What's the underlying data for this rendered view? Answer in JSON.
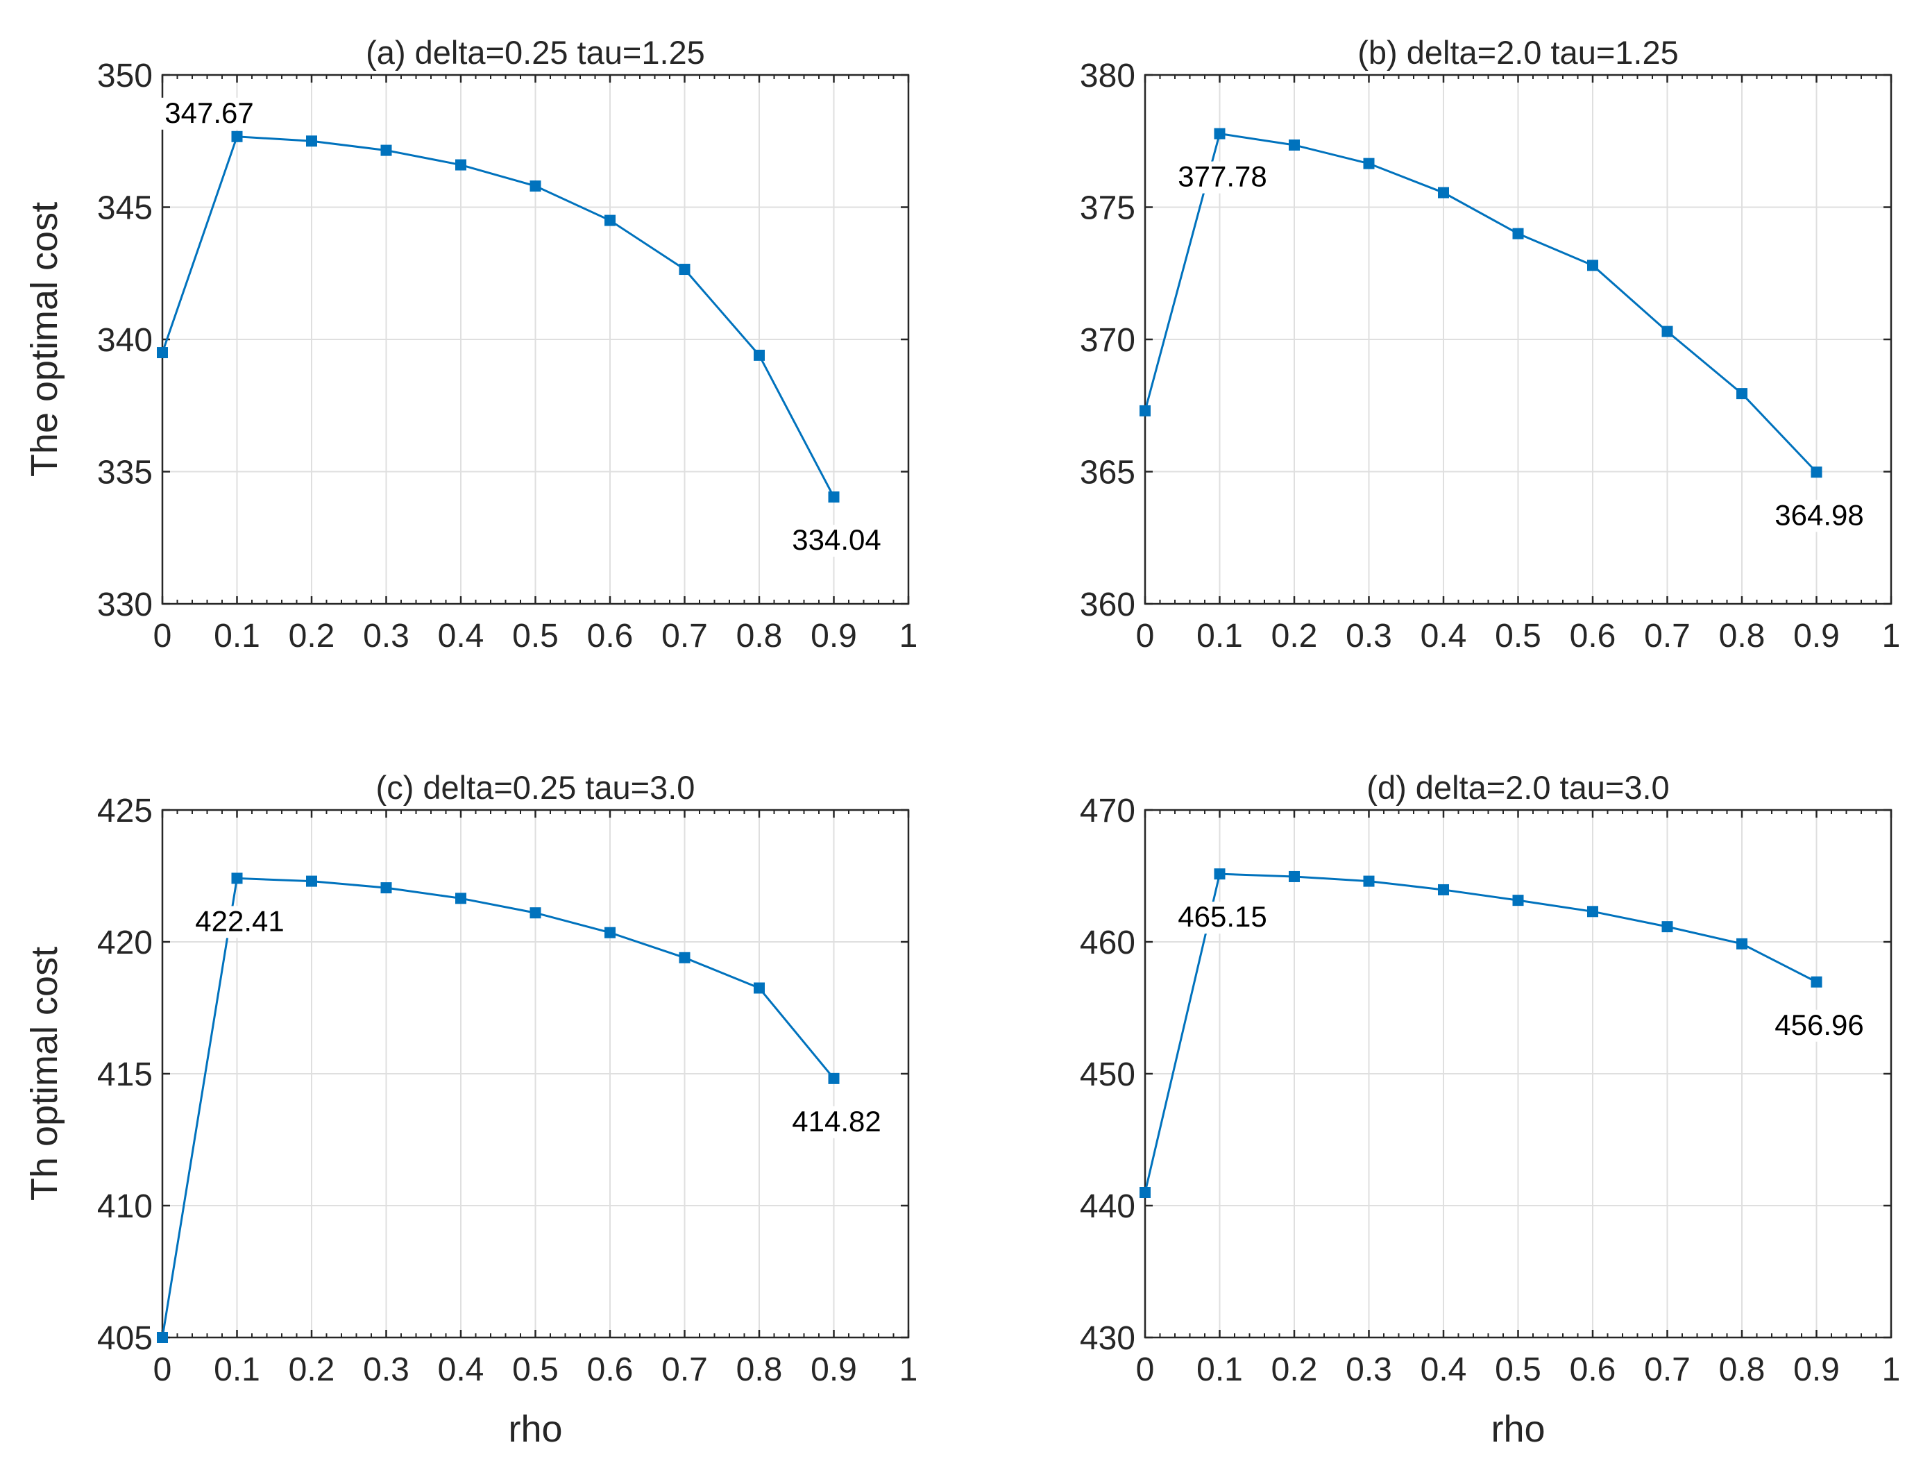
{
  "chart_data": [
    {
      "type": "line",
      "title": "(a) delta=0.25 tau=1.25",
      "xlabel": "",
      "ylabel": "The optimal cost",
      "x": [
        0,
        0.1,
        0.2,
        0.3,
        0.4,
        0.5,
        0.6,
        0.7,
        0.8,
        0.9
      ],
      "series": [
        {
          "name": "optimal cost",
          "values": [
            339.5,
            347.67,
            347.5,
            347.15,
            346.6,
            345.8,
            344.5,
            342.65,
            339.4,
            334.04
          ]
        }
      ],
      "xlim": [
        0,
        1
      ],
      "ylim": [
        330,
        350
      ],
      "xticks": [
        "0",
        "0.1",
        "0.2",
        "0.3",
        "0.4",
        "0.5",
        "0.6",
        "0.7",
        "0.8",
        "0.9",
        "1"
      ],
      "yticks": [
        "330",
        "335",
        "340",
        "345",
        "350"
      ],
      "grid": true,
      "annotations": [
        {
          "text": "347.67",
          "x": 0.1,
          "y": 347.67,
          "placement": "above-left"
        },
        {
          "text": "334.04",
          "x": 0.9,
          "y": 334.04,
          "placement": "below"
        }
      ]
    },
    {
      "type": "line",
      "title": "(b) delta=2.0 tau=1.25",
      "xlabel": "",
      "ylabel": "",
      "x": [
        0,
        0.1,
        0.2,
        0.3,
        0.4,
        0.5,
        0.6,
        0.7,
        0.8,
        0.9
      ],
      "series": [
        {
          "name": "optimal cost",
          "values": [
            367.3,
            377.78,
            377.35,
            376.65,
            375.55,
            374.0,
            372.8,
            370.3,
            367.95,
            364.98
          ]
        }
      ],
      "xlim": [
        0,
        1
      ],
      "ylim": [
        360,
        380
      ],
      "xticks": [
        "0",
        "0.1",
        "0.2",
        "0.3",
        "0.4",
        "0.5",
        "0.6",
        "0.7",
        "0.8",
        "0.9",
        "1"
      ],
      "yticks": [
        "360",
        "365",
        "370",
        "375",
        "380"
      ],
      "grid": true,
      "annotations": [
        {
          "text": "377.78",
          "x": 0.1,
          "y": 377.78,
          "placement": "below"
        },
        {
          "text": "364.98",
          "x": 0.9,
          "y": 364.98,
          "placement": "below"
        }
      ]
    },
    {
      "type": "line",
      "title": "(c) delta=0.25 tau=3.0",
      "xlabel": "rho",
      "ylabel": "Th optimal cost",
      "x": [
        0,
        0.1,
        0.2,
        0.3,
        0.4,
        0.5,
        0.6,
        0.7,
        0.8,
        0.9
      ],
      "series": [
        {
          "name": "optimal cost",
          "values": [
            405.0,
            422.41,
            422.3,
            422.05,
            421.65,
            421.1,
            420.35,
            419.4,
            418.25,
            414.82
          ]
        }
      ],
      "xlim": [
        0,
        1
      ],
      "ylim": [
        405,
        425
      ],
      "xticks": [
        "0",
        "0.1",
        "0.2",
        "0.3",
        "0.4",
        "0.5",
        "0.6",
        "0.7",
        "0.8",
        "0.9",
        "1"
      ],
      "yticks": [
        "405",
        "410",
        "415",
        "420",
        "425"
      ],
      "grid": true,
      "annotations": [
        {
          "text": "422.41",
          "x": 0.1,
          "y": 422.41,
          "placement": "below"
        },
        {
          "text": "414.82",
          "x": 0.9,
          "y": 414.82,
          "placement": "below"
        }
      ]
    },
    {
      "type": "line",
      "title": "(d) delta=2.0 tau=3.0",
      "xlabel": "rho",
      "ylabel": "",
      "x": [
        0,
        0.1,
        0.2,
        0.3,
        0.4,
        0.5,
        0.6,
        0.7,
        0.8,
        0.9
      ],
      "series": [
        {
          "name": "optimal cost",
          "values": [
            441.0,
            465.15,
            464.95,
            464.6,
            463.95,
            463.15,
            462.3,
            461.15,
            459.85,
            456.96
          ]
        }
      ],
      "xlim": [
        0,
        1
      ],
      "ylim": [
        430,
        470
      ],
      "xticks": [
        "0",
        "0.1",
        "0.2",
        "0.3",
        "0.4",
        "0.5",
        "0.6",
        "0.7",
        "0.8",
        "0.9",
        "1"
      ],
      "yticks": [
        "430",
        "440",
        "450",
        "460",
        "470"
      ],
      "grid": true,
      "annotations": [
        {
          "text": "465.15",
          "x": 0.1,
          "y": 465.15,
          "placement": "below"
        },
        {
          "text": "456.96",
          "x": 0.9,
          "y": 456.96,
          "placement": "below"
        }
      ]
    }
  ],
  "colors": {
    "line": "#0072BD",
    "grid": "#dfdfdf",
    "axis": "#262626"
  }
}
